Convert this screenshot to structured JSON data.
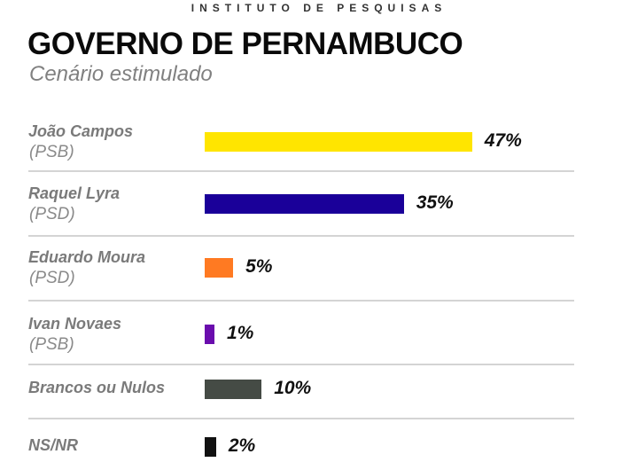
{
  "header": {
    "institute": "INSTITUTO DE PESQUISAS",
    "title": "GOVERNO DE PERNAMBUCO",
    "subtitle": "Cenário estimulado"
  },
  "chart_data": {
    "type": "bar",
    "orientation": "horizontal",
    "title": "GOVERNO DE PERNAMBUCO",
    "subtitle": "Cenário estimulado",
    "unit": "%",
    "categories": [
      "João Campos",
      "Raquel Lyra",
      "Eduardo Moura",
      "Ivan Novaes",
      "Brancos ou Nulos",
      "NS/NR"
    ],
    "parties": [
      "(PSB)",
      "(PSD)",
      "(PSD)",
      "(PSB)",
      "",
      ""
    ],
    "values": [
      47,
      35,
      5,
      1,
      10,
      2
    ],
    "labels": [
      "47%",
      "35%",
      "5%",
      "1%",
      "10%",
      "2%"
    ],
    "colors": [
      "#FFE500",
      "#1A0099",
      "#FF7A22",
      "#6A0DAD",
      "#454B45",
      "#111111"
    ],
    "grid": false,
    "legend": "none"
  }
}
